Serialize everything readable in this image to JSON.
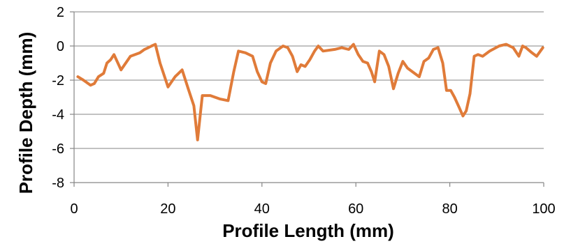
{
  "chart_data": {
    "type": "line",
    "title": "",
    "xlabel": "Profile Length (mm)",
    "ylabel": "Profile Depth (mm)",
    "xlim": [
      0,
      100
    ],
    "ylim": [
      -8,
      2
    ],
    "xticks": [
      0,
      20,
      40,
      60,
      80,
      100
    ],
    "yticks": [
      -8,
      -6,
      -4,
      -2,
      0,
      2
    ],
    "xtick_labels": [
      "0",
      "20",
      "40",
      "60",
      "80",
      "100"
    ],
    "ytick_labels": [
      "-8",
      "-6",
      "-4",
      "-2",
      "0",
      "2"
    ],
    "grid": "horizontal",
    "legend": "none",
    "series": [
      {
        "color": "#E07B39",
        "x": [
          0.8,
          2.0,
          3.5,
          4.3,
          5.2,
          6.3,
          7.0,
          7.8,
          8.5,
          10.0,
          12.0,
          14.0,
          15.0,
          15.8,
          16.5,
          17.3,
          18.3,
          20.0,
          21.5,
          23.0,
          24.3,
          25.5,
          26.3,
          27.3,
          29.0,
          31.0,
          32.8,
          34.0,
          35.0,
          36.5,
          38.0,
          39.0,
          40.0,
          40.8,
          41.8,
          43.0,
          44.5,
          45.5,
          46.5,
          47.5,
          48.3,
          49.2,
          50.2,
          51.2,
          52.0,
          53.0,
          55.5,
          57.0,
          58.5,
          59.5,
          60.5,
          61.5,
          62.5,
          63.3,
          64.0,
          65.0,
          66.0,
          67.0,
          68.0,
          69.0,
          70.0,
          71.0,
          72.5,
          73.5,
          74.5,
          75.5,
          76.5,
          77.5,
          78.5,
          79.3,
          80.2,
          81.0,
          82.0,
          82.8,
          83.5,
          84.3,
          85.2,
          86.0,
          87.0,
          88.5,
          90.5,
          92.0,
          93.5,
          94.7,
          95.5,
          96.2,
          97.5,
          98.5,
          99.8
        ],
        "y": [
          -1.8,
          -2.0,
          -2.3,
          -2.2,
          -1.8,
          -1.6,
          -1.0,
          -0.8,
          -0.5,
          -1.4,
          -0.6,
          -0.4,
          -0.2,
          -0.1,
          0.0,
          0.1,
          -1.0,
          -2.4,
          -1.8,
          -1.4,
          -2.5,
          -3.5,
          -5.5,
          -2.9,
          -2.9,
          -3.1,
          -3.2,
          -1.5,
          -0.3,
          -0.4,
          -0.6,
          -1.5,
          -2.1,
          -2.2,
          -1.0,
          -0.3,
          0.0,
          -0.1,
          -0.6,
          -1.5,
          -1.1,
          -1.2,
          -0.8,
          -0.3,
          0.0,
          -0.3,
          -0.2,
          -0.1,
          -0.2,
          0.1,
          -0.5,
          -0.9,
          -1.0,
          -1.5,
          -2.1,
          -0.3,
          -0.5,
          -1.2,
          -2.5,
          -1.6,
          -0.9,
          -1.3,
          -1.6,
          -1.8,
          -0.9,
          -0.7,
          -0.2,
          -0.1,
          -1.0,
          -2.6,
          -2.6,
          -3.0,
          -3.6,
          -4.1,
          -3.8,
          -2.8,
          -0.6,
          -0.5,
          -0.6,
          -0.3,
          0.0,
          0.1,
          -0.1,
          -0.6,
          0.0,
          -0.1,
          -0.4,
          -0.6,
          -0.1
        ]
      }
    ]
  }
}
